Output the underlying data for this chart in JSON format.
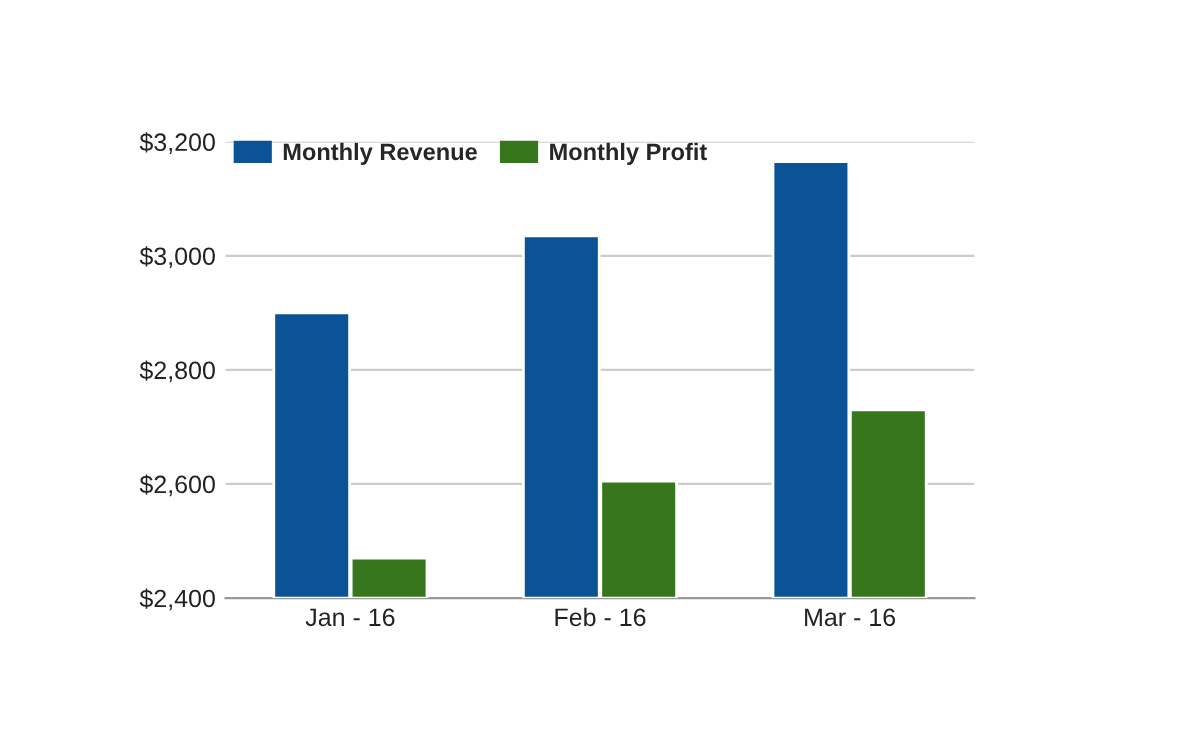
{
  "chart_data": {
    "type": "bar",
    "categories": [
      "Jan - 16",
      "Feb - 16",
      "Mar - 16"
    ],
    "series": [
      {
        "name": "Monthly Revenue",
        "color": "#0b5394",
        "values": [
          2900,
          3035,
          3165
        ]
      },
      {
        "name": "Monthly Profit",
        "color": "#38761d",
        "values": [
          2470,
          2605,
          2730
        ]
      }
    ],
    "ylim": [
      2400,
      3200
    ],
    "yticks": [
      {
        "value": 2400,
        "label": "$2,400"
      },
      {
        "value": 2600,
        "label": "$2,600"
      },
      {
        "value": 2800,
        "label": "$2,800"
      },
      {
        "value": 3000,
        "label": "$3,000"
      },
      {
        "value": 3200,
        "label": "$3,200"
      }
    ],
    "grid": "y",
    "legend": "top left"
  }
}
